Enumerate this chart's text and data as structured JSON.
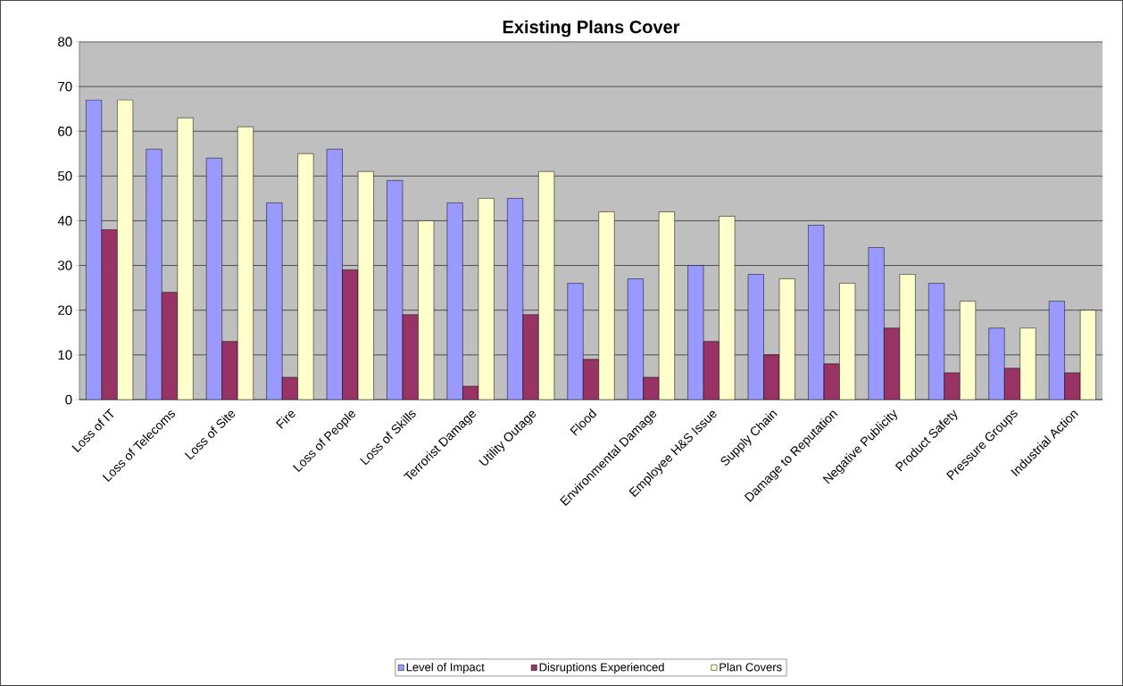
{
  "chart_data": {
    "type": "bar",
    "title": "Existing Plans Cover",
    "categories": [
      "Loss of IT",
      "Loss of Telecoms",
      "Loss of Site",
      "Fire",
      "Loss of People",
      "Loss of Skills",
      "Terrorist Damage",
      "Utility Outage",
      "Flood",
      "Environmental Damage",
      "Employee H&S Issue",
      "Supply Chain",
      "Damage to Reputation",
      "Negative Publicity",
      "Product Safety",
      "Pressure Groups",
      "Industrial Action"
    ],
    "series": [
      {
        "name": "Level of Impact",
        "color": "#9999ff",
        "values": [
          67,
          56,
          54,
          44,
          56,
          49,
          44,
          45,
          26,
          27,
          30,
          28,
          39,
          34,
          26,
          16,
          22
        ]
      },
      {
        "name": "Disruptions Experienced",
        "color": "#993366",
        "values": [
          38,
          24,
          13,
          5,
          29,
          19,
          3,
          19,
          9,
          5,
          13,
          10,
          8,
          16,
          6,
          7,
          6
        ]
      },
      {
        "name": "Plan Covers",
        "color": "#ffffcc",
        "values": [
          67,
          63,
          61,
          55,
          51,
          40,
          45,
          51,
          42,
          42,
          41,
          27,
          26,
          28,
          22,
          16,
          20
        ]
      }
    ],
    "ylim": [
      0,
      80
    ],
    "yticks": [
      0,
      10,
      20,
      30,
      40,
      50,
      60,
      70,
      80
    ],
    "grid": "y",
    "legend": "bottom"
  }
}
